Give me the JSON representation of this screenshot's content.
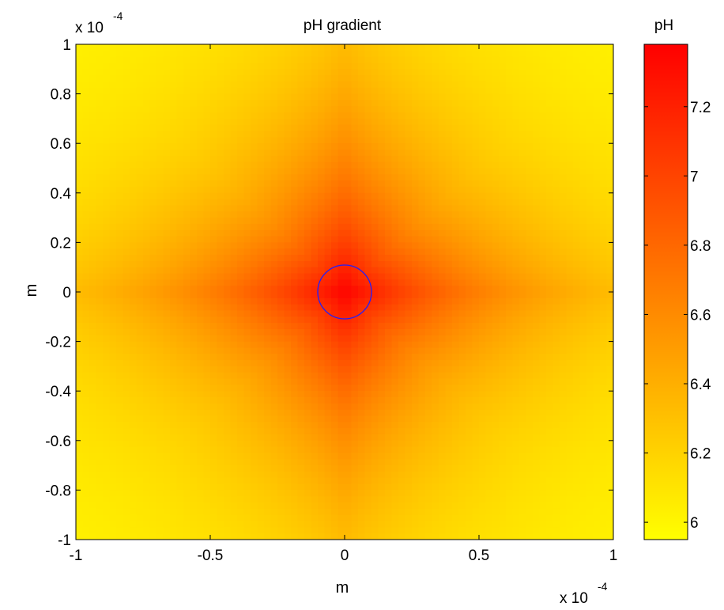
{
  "chart_data": {
    "type": "heatmap",
    "title": "pH gradient",
    "xlabel": "m",
    "ylabel": "m",
    "x_exponent_label": {
      "base": "x 10",
      "exp": "-4"
    },
    "y_exponent_label": {
      "base": "x 10",
      "exp": "-4"
    },
    "xlim": [
      -1,
      1
    ],
    "ylim": [
      -1,
      1
    ],
    "x_ticks": [
      -1,
      -0.5,
      0,
      0.5,
      1
    ],
    "x_tick_labels": [
      "-1",
      "-0.5",
      "0",
      "0.5",
      "1"
    ],
    "y_ticks": [
      1,
      0.8,
      0.6,
      0.4,
      0.2,
      0,
      -0.2,
      -0.4,
      -0.6,
      -0.8,
      -1
    ],
    "y_tick_labels": [
      "1",
      "0.8",
      "0.6",
      "0.4",
      "0.2",
      "0",
      "-0.2",
      "-0.4",
      "-0.6",
      "-0.8",
      "-1"
    ],
    "colorbar": {
      "title": "pH",
      "range": [
        5.95,
        7.38
      ],
      "ticks": [
        6,
        6.2,
        6.4,
        6.6,
        6.8,
        7,
        7.2
      ],
      "tick_labels": [
        "6",
        "6.2",
        "6.4",
        "6.6",
        "6.8",
        "7",
        "7.2"
      ],
      "colormap": "autumn",
      "low_color": "#ffff00",
      "high_color": "#ff0000"
    },
    "field": {
      "center": [
        0,
        0
      ],
      "max_value": 7.38,
      "min_value": 5.95,
      "falloff": "decreases with distance from center"
    },
    "annotations": [
      {
        "shape": "circle",
        "center": [
          0,
          0
        ],
        "radius": 0.1,
        "color": "#1f1fff"
      }
    ]
  }
}
